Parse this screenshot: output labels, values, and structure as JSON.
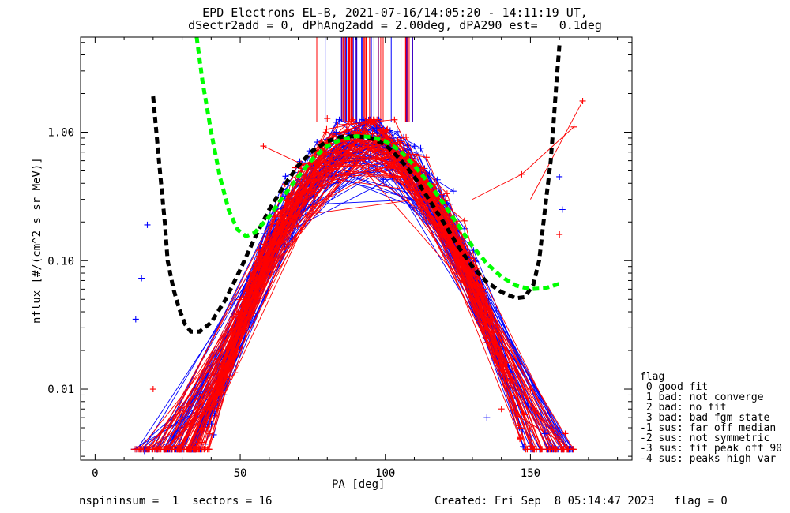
{
  "title_line1": "EPD Electrons EL-B, 2021-07-16/14:05:20 - 14:11:19 UT,",
  "title_line2": "dSectr2add = 0, dPhAng2add = 2.00deg, dPA290_est=   0.1deg",
  "footer": {
    "left": "nspininsum =  1  sectors = 16",
    "right": "Created: Fri Sep  8 05:14:47 2023   flag = 0"
  },
  "legend": {
    "title": "flag",
    "items": [
      " 0 good fit",
      " 1 bad: not converge",
      " 2 bad: no fit",
      " 3 bad: bad fgm state",
      "-1 sus: far off median",
      "-2 sus: not symmetric",
      "-3 sus: fit peak off 90",
      "-4 sus: peaks high var"
    ]
  },
  "colors": {
    "red": "#ff0000",
    "blue": "#0000ff",
    "green": "#00ff00",
    "black": "#000000"
  },
  "chart_data": {
    "type": "line",
    "xlabel": "PA [deg]",
    "ylabel": "nflux [#/(cm^2 s sr MeV)]",
    "xlim": [
      -5,
      185
    ],
    "ylim": [
      0.0028,
      5.5
    ],
    "yscale": "log",
    "xticks": [
      0,
      50,
      100,
      150
    ],
    "xtick_labels": [
      "0",
      "50",
      "100",
      "150"
    ],
    "yticks": [
      0.01,
      0.1,
      1.0
    ],
    "ytick_labels": [
      "0.01",
      "0.10",
      "1.00"
    ],
    "series": [
      {
        "color": "black",
        "style": "thick-dash",
        "x": [
          20,
          22,
          24,
          25,
          27,
          29,
          31,
          33,
          36,
          40,
          45,
          50,
          55,
          60,
          65,
          70,
          75,
          80,
          85,
          90,
          95,
          100,
          105,
          110,
          115,
          120,
          125,
          130,
          135,
          140,
          145,
          148,
          151,
          153,
          155,
          157,
          158,
          159,
          160
        ],
        "y": [
          1.9,
          0.6,
          0.2,
          0.1,
          0.06,
          0.042,
          0.032,
          0.028,
          0.028,
          0.033,
          0.05,
          0.085,
          0.15,
          0.25,
          0.38,
          0.55,
          0.72,
          0.85,
          0.92,
          0.93,
          0.9,
          0.8,
          0.62,
          0.45,
          0.3,
          0.2,
          0.13,
          0.09,
          0.068,
          0.057,
          0.051,
          0.052,
          0.065,
          0.1,
          0.25,
          0.6,
          1.2,
          2.5,
          4.8
        ]
      },
      {
        "color": "green",
        "style": "thick-dash",
        "x": [
          35,
          37,
          40,
          43,
          46,
          49,
          52,
          55,
          60,
          65,
          70,
          75,
          80,
          85,
          90,
          95,
          100,
          105,
          110,
          115,
          120,
          125,
          130,
          135,
          140,
          145,
          150,
          155,
          160
        ],
        "y": [
          5.5,
          2.5,
          1.0,
          0.45,
          0.25,
          0.175,
          0.155,
          0.165,
          0.22,
          0.32,
          0.45,
          0.62,
          0.78,
          0.88,
          0.93,
          0.92,
          0.85,
          0.72,
          0.55,
          0.4,
          0.28,
          0.19,
          0.13,
          0.095,
          0.075,
          0.064,
          0.06,
          0.061,
          0.066
        ]
      }
    ],
    "scatter_cloud": {
      "description_points": "red (+) and blue (+) connected measurement traces forming a peaked pitch-angle distribution",
      "red_points": [
        [
          38,
          0.0035
        ],
        [
          58,
          0.78
        ],
        [
          76,
          0.5
        ],
        [
          80,
          1.28
        ],
        [
          147,
          0.47
        ],
        [
          165,
          1.1
        ],
        [
          168,
          1.75
        ],
        [
          160,
          0.16
        ],
        [
          162,
          0.0045
        ],
        [
          150,
          0.01
        ],
        [
          140,
          0.007
        ],
        [
          20,
          0.01
        ]
      ],
      "blue_points": [
        [
          17,
          0.0033
        ],
        [
          16,
          0.073
        ],
        [
          18,
          0.19
        ],
        [
          83,
          1.0
        ],
        [
          97,
          1.08
        ],
        [
          160,
          0.45
        ],
        [
          161,
          0.25
        ],
        [
          155,
          0.0045
        ],
        [
          135,
          0.006
        ],
        [
          14,
          0.035
        ]
      ]
    },
    "vertical_lines": {
      "x_range": [
        76,
        110
      ],
      "y_top": 5.5,
      "y_bottom": 1.2
    }
  }
}
